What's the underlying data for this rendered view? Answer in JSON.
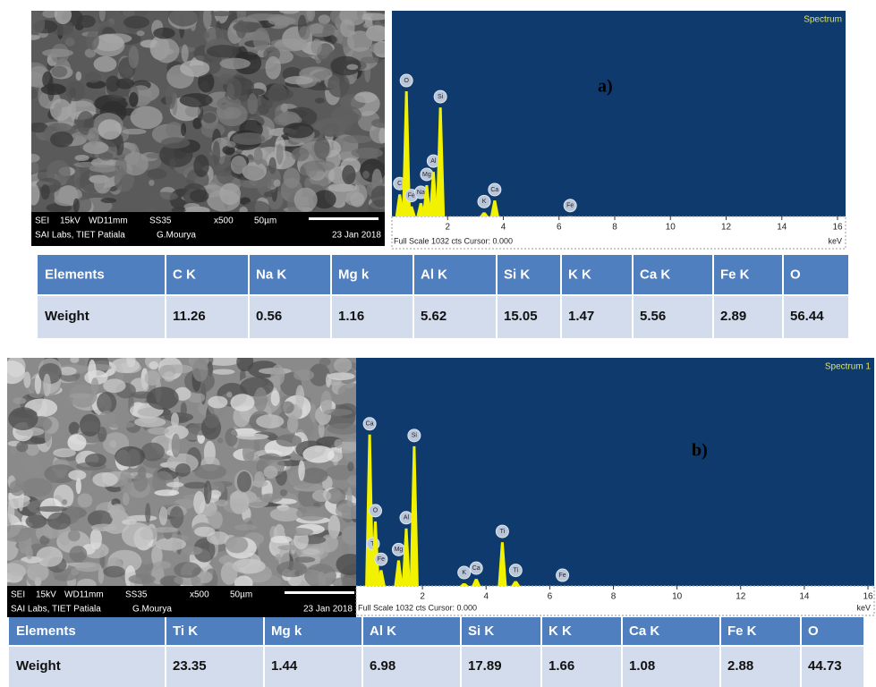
{
  "panels": [
    {
      "label": "a)",
      "sem": {
        "line1": [
          "SEI",
          "15kV",
          "WD11mm",
          "SS35",
          "x500",
          "50µm"
        ],
        "line2": [
          "SAI Labs, TIET Patiala",
          "G.Mourya",
          "23 Jan 2018"
        ]
      },
      "spectrum": {
        "title": "Spectrum",
        "xlim": [
          0,
          16
        ],
        "ylim": [
          0,
          1032
        ],
        "xticks": [
          2,
          4,
          6,
          8,
          10,
          12,
          14,
          16
        ],
        "footer": "Full Scale 1032 cts Cursor: 0.000",
        "unit": "keV",
        "peaks": [
          {
            "label": "C",
            "kev": 0.28,
            "counts": 120
          },
          {
            "label": "O",
            "kev": 0.52,
            "counts": 637
          },
          {
            "label": "Fe",
            "kev": 0.7,
            "counts": 60
          },
          {
            "label": "Na",
            "kev": 1.04,
            "counts": 76
          },
          {
            "label": "Mg",
            "kev": 1.25,
            "counts": 166
          },
          {
            "label": "Al",
            "kev": 1.49,
            "counts": 233
          },
          {
            "label": "Si",
            "kev": 1.74,
            "counts": 556
          },
          {
            "label": "K",
            "kev": 3.31,
            "counts": 30
          },
          {
            "label": "Ca",
            "kev": 3.69,
            "counts": 90
          },
          {
            "label": "Fe",
            "kev": 6.4,
            "counts": 10
          }
        ]
      },
      "table": {
        "header": [
          "Elements",
          "C K",
          "Na K",
          "Mg k",
          "Al K",
          "Si K",
          "K K",
          "Ca K",
          "Fe K",
          "O"
        ],
        "row": [
          "Weight",
          "11.26",
          "0.56",
          "1.16",
          "5.62",
          "15.05",
          "1.47",
          "5.56",
          "2.89",
          "56.44"
        ]
      }
    },
    {
      "label": "b)",
      "sem": {
        "line1": [
          "SEI",
          "15kV",
          "WD11mm",
          "SS35",
          "x500",
          "50µm"
        ],
        "line2": [
          "SAI Labs, TIET Patiala",
          "G.Mourya",
          "23 Jan 2018"
        ]
      },
      "spectrum": {
        "title": "Spectrum 1",
        "xlim": [
          0,
          16
        ],
        "ylim": [
          0,
          1032
        ],
        "xticks": [
          2,
          4,
          6,
          8,
          10,
          12,
          14,
          16
        ],
        "footer": "Full Scale 1032 cts Cursor: 0.000",
        "unit": "keV",
        "peaks": [
          {
            "label": "Ca",
            "kev": 0.34,
            "counts": 693
          },
          {
            "label": "Ti",
            "kev": 0.45,
            "counts": 150
          },
          {
            "label": "O",
            "kev": 0.52,
            "counts": 300
          },
          {
            "label": "Fe",
            "kev": 0.7,
            "counts": 80
          },
          {
            "label": "Mg",
            "kev": 1.25,
            "counts": 124
          },
          {
            "label": "Al",
            "kev": 1.49,
            "counts": 268
          },
          {
            "label": "Si",
            "kev": 1.74,
            "counts": 640
          },
          {
            "label": "K",
            "kev": 3.31,
            "counts": 20
          },
          {
            "label": "Ca",
            "kev": 3.69,
            "counts": 40
          },
          {
            "label": "Ti",
            "kev": 4.51,
            "counts": 206
          },
          {
            "label": "Ti",
            "kev": 4.93,
            "counts": 30
          },
          {
            "label": "Fe",
            "kev": 6.4,
            "counts": 8
          }
        ]
      },
      "table": {
        "header": [
          "Elements",
          "Ti K",
          "Mg k",
          "Al K",
          "Si K",
          "K K",
          "Ca K",
          "Fe K",
          "O"
        ],
        "row": [
          "Weight",
          "23.35",
          "1.44",
          "6.98",
          "17.89",
          "1.66",
          "1.08",
          "2.88",
          "44.73"
        ]
      }
    }
  ]
}
